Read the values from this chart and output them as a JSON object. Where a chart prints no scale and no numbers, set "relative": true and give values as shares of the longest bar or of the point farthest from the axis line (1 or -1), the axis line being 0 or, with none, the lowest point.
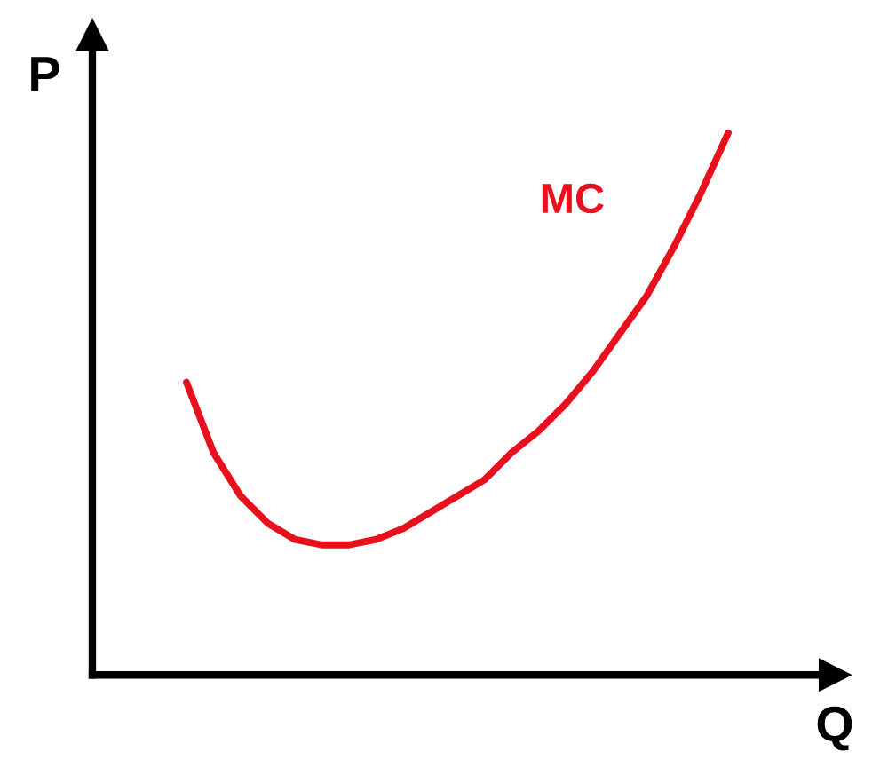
{
  "chart_data": {
    "type": "line",
    "relative": true,
    "xlabel": "Q",
    "ylabel": "P",
    "legend": false,
    "categories": [
      null,
      null,
      null,
      null,
      null,
      null,
      null,
      null,
      null,
      null,
      null,
      null,
      null,
      null,
      null,
      null,
      null,
      null,
      null,
      null,
      null
    ],
    "series": [
      {
        "name": "MC",
        "color": "#e8101c",
        "values": [
          0.54,
          0.41,
          0.33,
          0.28,
          0.25,
          0.24,
          0.24,
          0.25,
          0.27,
          0.3,
          0.33,
          0.36,
          0.41,
          0.45,
          0.5,
          0.56,
          0.63,
          0.7,
          0.79,
          0.89,
          1.0
        ]
      }
    ]
  }
}
